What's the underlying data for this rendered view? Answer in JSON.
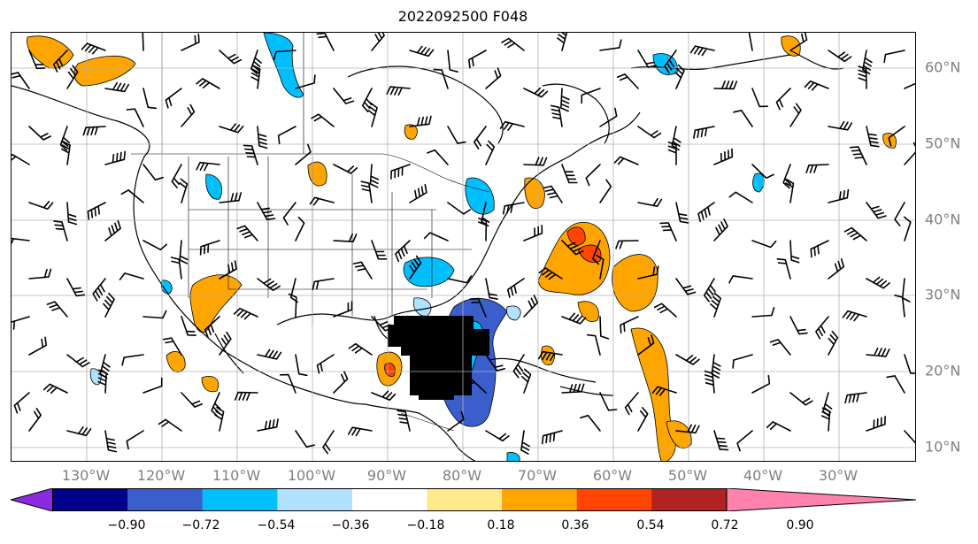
{
  "title": "2022092500 F048",
  "map": {
    "lat_labels": [
      "60°N",
      "50°N",
      "40°N",
      "30°N",
      "20°N",
      "10°N"
    ],
    "lon_labels": [
      "130°W",
      "120°W",
      "110°W",
      "100°W",
      "90°W",
      "80°W",
      "70°W",
      "60°W",
      "50°W",
      "40°W",
      "30°W"
    ],
    "gridlines": true
  },
  "colorbar": {
    "ticks": [
      "−0.90",
      "−0.72",
      "−0.54",
      "−0.36",
      "−0.18",
      "0.18",
      "0.36",
      "0.54",
      "0.72",
      "0.90"
    ],
    "colors": [
      "#8a2be2",
      "#00008b",
      "#3a5fcd",
      "#00bfff",
      "#b0e2ff",
      "#ffffff",
      "#ffe98a",
      "#ffa500",
      "#ff4500",
      "#b22222",
      "#ff82ab"
    ],
    "extend": "both"
  }
}
